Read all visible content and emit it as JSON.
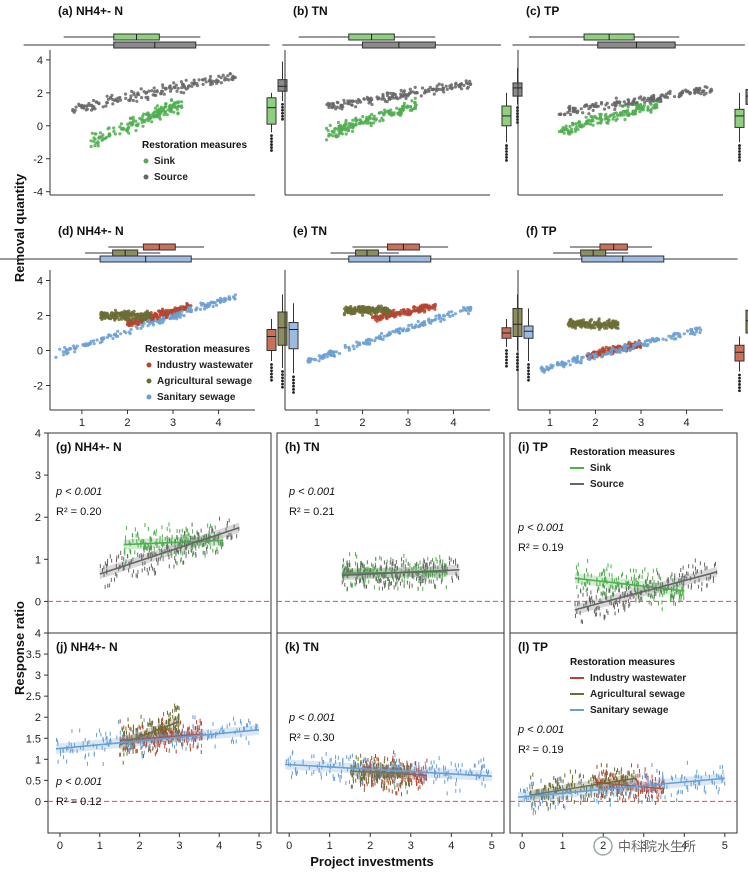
{
  "figure": {
    "y_label_top": "Removal quantity",
    "y_label_bottom": "Response ratio",
    "x_label_bottom": "Project investments",
    "watermark": "中科院水生所"
  },
  "colors": {
    "sink": "#4fae4f",
    "source": "#666666",
    "industry": "#b5452f",
    "agricultural": "#6b6d35",
    "sanitary": "#6a9fd3",
    "zero_line": "#e0504a",
    "box_sink": "#8fcf7f",
    "box_source": "#8a8a8a",
    "box_industry": "#c8705a",
    "box_agricultural": "#8c8e5c",
    "box_sanitary": "#9dbbe0"
  },
  "chart_data": [
    {
      "id": "a",
      "type": "scatter",
      "title": "(a) NH4+- N",
      "x_ticks": [],
      "y_ticks": [
        "4",
        "2",
        "0",
        "-2",
        "-4"
      ],
      "ylim": [
        -4.2,
        4.6
      ],
      "xlim": [
        0.3,
        4.8
      ],
      "legend_title": "Restoration measures",
      "series": [
        {
          "name": "Sink",
          "color_key": "sink",
          "box": [
            -0.4,
            0.1,
            1.1,
            1.7,
            2.0
          ]
        },
        {
          "name": "Source",
          "color_key": "source",
          "box": [
            1.5,
            2.1,
            2.4,
            2.8,
            3.9
          ]
        }
      ]
    },
    {
      "id": "b",
      "type": "scatter",
      "title": "(b) TN",
      "x_ticks": [],
      "y_ticks": [],
      "ylim": [
        -4.2,
        4.6
      ],
      "xlim": [
        0.3,
        4.8
      ],
      "series": [
        {
          "name": "Sink",
          "color_key": "sink",
          "box": [
            -1.0,
            0.0,
            0.6,
            1.2,
            2.0
          ]
        },
        {
          "name": "Source",
          "color_key": "source",
          "box": [
            1.3,
            1.8,
            2.3,
            2.6,
            3.5
          ]
        }
      ]
    },
    {
      "id": "c",
      "type": "scatter",
      "title": "(c) TP",
      "x_ticks": [],
      "y_ticks": [],
      "ylim": [
        -4.2,
        4.6
      ],
      "xlim": [
        0.3,
        4.8
      ],
      "series": [
        {
          "name": "Sink",
          "color_key": "sink",
          "box": [
            -1.0,
            -0.1,
            0.6,
            1.0,
            2.0
          ]
        },
        {
          "name": "Source",
          "color_key": "source",
          "box": [
            0.8,
            1.3,
            1.8,
            2.2,
            3.2
          ]
        }
      ]
    },
    {
      "id": "d",
      "type": "scatter",
      "title": "(d) NH4+- N",
      "x_ticks": [
        "1",
        "2",
        "3",
        "4"
      ],
      "y_ticks": [
        "4",
        "2",
        "0",
        "-2"
      ],
      "ylim": [
        -3.4,
        4.6
      ],
      "xlim": [
        0.3,
        4.8
      ],
      "legend_title": "Restoration measures",
      "series": [
        {
          "name": "Industry wastewater",
          "color_key": "industry",
          "box": [
            -0.6,
            0.0,
            0.8,
            1.2,
            1.8
          ]
        },
        {
          "name": "Agricultural sewage",
          "color_key": "agricultural",
          "box": [
            -1.0,
            0.3,
            1.3,
            2.2,
            3.2
          ]
        },
        {
          "name": "Sanitary sewage",
          "color_key": "sanitary",
          "box": [
            -1.3,
            0.1,
            1.2,
            1.6,
            2.7
          ]
        }
      ]
    },
    {
      "id": "e",
      "type": "scatter",
      "title": "(e) TN",
      "x_ticks": [
        "1",
        "2",
        "3",
        "4"
      ],
      "y_ticks": [],
      "ylim": [
        -3.4,
        4.6
      ],
      "xlim": [
        0.3,
        4.8
      ],
      "series": [
        {
          "name": "Industry wastewater",
          "color_key": "industry",
          "box": [
            0.2,
            0.7,
            1.0,
            1.3,
            1.8
          ]
        },
        {
          "name": "Agricultural sewage",
          "color_key": "agricultural",
          "box": [
            0.0,
            0.8,
            1.5,
            2.4,
            3.2
          ]
        },
        {
          "name": "Sanitary sewage",
          "color_key": "sanitary",
          "box": [
            -0.6,
            0.7,
            1.1,
            1.4,
            2.4
          ]
        }
      ]
    },
    {
      "id": "f",
      "type": "scatter",
      "title": "(f) TP",
      "x_ticks": [
        "1",
        "2",
        "3",
        "4"
      ],
      "y_ticks": [],
      "ylim": [
        -3.4,
        4.6
      ],
      "xlim": [
        0.3,
        4.8
      ],
      "series": [
        {
          "name": "Industry wastewater",
          "color_key": "industry",
          "box": [
            -1.2,
            -0.6,
            -0.1,
            0.3,
            0.8
          ]
        },
        {
          "name": "Agricultural sewage",
          "color_key": "agricultural",
          "box": [
            0.2,
            1.0,
            1.7,
            2.3,
            3.3
          ]
        },
        {
          "name": "Sanitary sewage",
          "color_key": "sanitary",
          "box": [
            -0.8,
            0.0,
            0.6,
            1.2,
            2.2
          ]
        }
      ]
    },
    {
      "id": "g",
      "type": "scatter",
      "title": "(g) NH4+- N",
      "stat_p": "p < 0.001",
      "stat_r2": "R² = 0.20",
      "x_ticks": [],
      "y_ticks": [
        "4",
        "3",
        "2",
        "1",
        "0"
      ],
      "ylim": [
        -0.75,
        4.0
      ],
      "xlim": [
        -0.3,
        5.3
      ],
      "series": [
        {
          "name": "Sink",
          "color_key": "sink",
          "fit_x": [
            1.6,
            4.1
          ],
          "fit_y": [
            1.35,
            1.45
          ]
        },
        {
          "name": "Source",
          "color_key": "source",
          "fit_x": [
            1.0,
            4.5
          ],
          "fit_y": [
            0.65,
            1.75
          ]
        }
      ]
    },
    {
      "id": "h",
      "type": "scatter",
      "title": "(h) TN",
      "stat_p": "p < 0.001",
      "stat_r2": "R² = 0.21",
      "x_ticks": [],
      "y_ticks": [],
      "ylim": [
        -0.75,
        4.0
      ],
      "xlim": [
        -0.3,
        5.3
      ],
      "series": [
        {
          "name": "Sink",
          "color_key": "sink",
          "fit_x": [
            1.3,
            3.9
          ],
          "fit_y": [
            0.67,
            0.7
          ]
        },
        {
          "name": "Source",
          "color_key": "source",
          "fit_x": [
            1.3,
            4.2
          ],
          "fit_y": [
            0.62,
            0.75
          ]
        }
      ]
    },
    {
      "id": "i",
      "type": "scatter",
      "title": "(i) TP",
      "stat_p": "p < 0.001",
      "stat_r2": "R² = 0.19",
      "x_ticks": [],
      "y_ticks": [],
      "ylim": [
        -0.75,
        4.0
      ],
      "xlim": [
        -0.3,
        5.3
      ],
      "legend_title": "Restoration measures",
      "series": [
        {
          "name": "Sink",
          "color_key": "sink",
          "fit_x": [
            1.3,
            4.0
          ],
          "fit_y": [
            0.55,
            0.25
          ]
        },
        {
          "name": "Source",
          "color_key": "source",
          "fit_x": [
            1.3,
            4.8
          ],
          "fit_y": [
            -0.2,
            0.7
          ]
        }
      ]
    },
    {
      "id": "j",
      "type": "scatter",
      "title": "(j) NH4+- N",
      "stat_p": "p < 0.001",
      "stat_r2": "R² = 0.12",
      "x_ticks": [
        "0",
        "1",
        "2",
        "3",
        "4",
        "5"
      ],
      "y_ticks": [
        "4",
        "3.5",
        "3",
        "2.5",
        "2",
        "1.5",
        "1",
        "0.5",
        "0"
      ],
      "ylim": [
        -0.75,
        4.0
      ],
      "xlim": [
        -0.3,
        5.3
      ],
      "series": [
        {
          "name": "Industry wastewater",
          "color_key": "industry",
          "fit_x": [
            1.5,
            3.6
          ],
          "fit_y": [
            1.45,
            1.6
          ]
        },
        {
          "name": "Agricultural sewage",
          "color_key": "agricultural",
          "fit_x": [
            1.5,
            3.0
          ],
          "fit_y": [
            1.35,
            1.9
          ]
        },
        {
          "name": "Sanitary sewage",
          "color_key": "sanitary",
          "fit_x": [
            -0.1,
            5.0
          ],
          "fit_y": [
            1.25,
            1.7
          ]
        }
      ]
    },
    {
      "id": "k",
      "type": "scatter",
      "title": "(k) TN",
      "stat_p": "p < 0.001",
      "stat_r2": "R² = 0.30",
      "x_ticks": [
        "0",
        "1",
        "2",
        "3",
        "4",
        "5"
      ],
      "y_ticks": [],
      "ylim": [
        -0.75,
        4.0
      ],
      "xlim": [
        -0.3,
        5.3
      ],
      "series": [
        {
          "name": "Industry wastewater",
          "color_key": "industry",
          "fit_x": [
            1.8,
            3.4
          ],
          "fit_y": [
            0.72,
            0.62
          ]
        },
        {
          "name": "Agricultural sewage",
          "color_key": "agricultural",
          "fit_x": [
            1.5,
            3.0
          ],
          "fit_y": [
            0.72,
            0.66
          ]
        },
        {
          "name": "Sanitary sewage",
          "color_key": "sanitary",
          "fit_x": [
            -0.1,
            5.0
          ],
          "fit_y": [
            0.88,
            0.6
          ]
        }
      ]
    },
    {
      "id": "l",
      "type": "scatter",
      "title": "(l) TP",
      "stat_p": "p < 0.001",
      "stat_r2": "R² = 0.19",
      "x_ticks": [
        "0",
        "1",
        "2",
        "3",
        "4",
        "5"
      ],
      "y_ticks": [],
      "ylim": [
        -0.75,
        4.0
      ],
      "xlim": [
        -0.3,
        5.3
      ],
      "legend_title": "Restoration measures",
      "series": [
        {
          "name": "Industry wastewater",
          "color_key": "industry",
          "fit_x": [
            1.8,
            3.5
          ],
          "fit_y": [
            0.45,
            0.3
          ]
        },
        {
          "name": "Agricultural sewage",
          "color_key": "agricultural",
          "fit_x": [
            0.2,
            2.8
          ],
          "fit_y": [
            0.15,
            0.55
          ]
        },
        {
          "name": "Sanitary sewage",
          "color_key": "sanitary",
          "fit_x": [
            -0.1,
            5.0
          ],
          "fit_y": [
            0.1,
            0.55
          ]
        }
      ]
    }
  ]
}
